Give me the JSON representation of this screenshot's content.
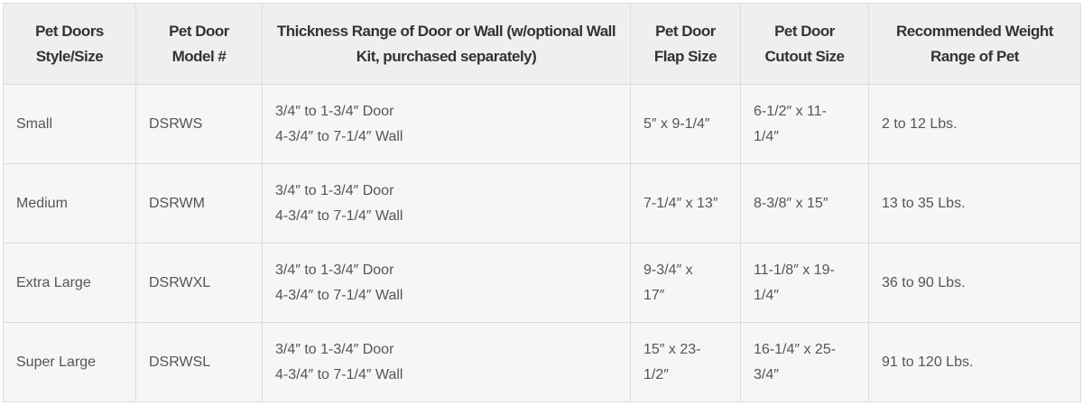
{
  "table": {
    "headers": [
      [
        "Pet Doors",
        "Style/Size"
      ],
      [
        "Pet Door",
        "Model #"
      ],
      [
        "Thickness Range of Door or Wall (w/optional Wall",
        "Kit, purchased separately)"
      ],
      [
        "Pet Door",
        "Flap Size"
      ],
      [
        "Pet Door",
        "Cutout Size"
      ],
      [
        "Recommended Weight",
        "Range of Pet"
      ]
    ],
    "rows": [
      [
        [
          "Small"
        ],
        [
          "DSRWS"
        ],
        [
          "3/4″ to 1-3/4″ Door",
          "4-3/4″ to 7-1/4″ Wall"
        ],
        [
          "5″ x 9-1/4″"
        ],
        [
          "6-1/2″ x 11-",
          "1/4″"
        ],
        [
          "2 to 12 Lbs."
        ]
      ],
      [
        [
          "Medium"
        ],
        [
          "DSRWM"
        ],
        [
          "3/4″ to 1-3/4″ Door",
          "4-3/4″ to 7-1/4″ Wall"
        ],
        [
          "7-1/4″ x 13″"
        ],
        [
          "8-3/8″ x 15″"
        ],
        [
          "13 to 35 Lbs."
        ]
      ],
      [
        [
          "Extra Large"
        ],
        [
          "DSRWXL"
        ],
        [
          "3/4″ to 1-3/4″ Door",
          "4-3/4″ to 7-1/4″ Wall"
        ],
        [
          "9-3/4″ x",
          "17″"
        ],
        [
          "11-1/8″ x 19-",
          "1/4″"
        ],
        [
          "36 to 90 Lbs."
        ]
      ],
      [
        [
          "Super Large"
        ],
        [
          "DSRWSL"
        ],
        [
          "3/4″ to 1-3/4″ Door",
          "4-3/4″ to 7-1/4″ Wall"
        ],
        [
          "15″ x 23-",
          "1/2″"
        ],
        [
          "16-1/4″ x 25-",
          "3/4″"
        ],
        [
          "91 to 120 Lbs."
        ]
      ]
    ]
  }
}
